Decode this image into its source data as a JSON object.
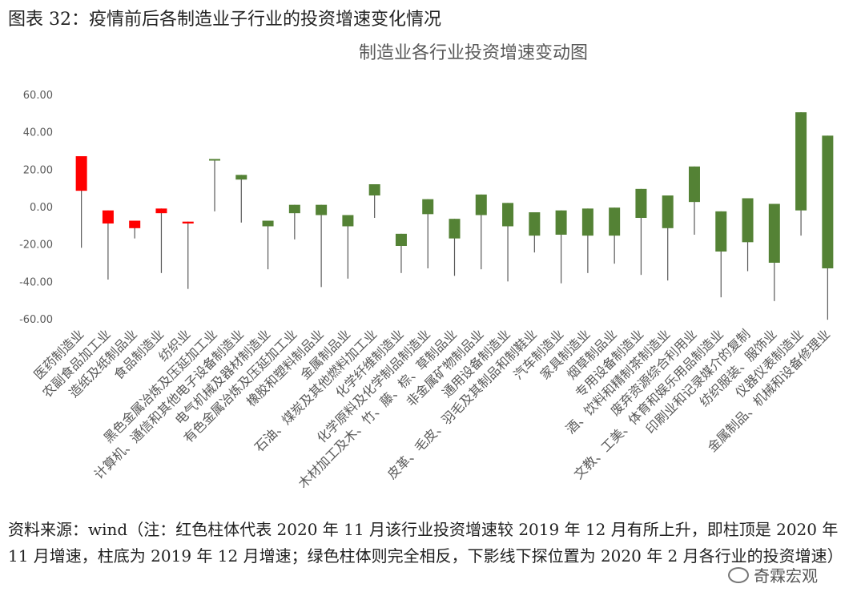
{
  "header": {
    "title": "图表 32：疫情前后各制造业子行业的投资增速变化情况"
  },
  "source": {
    "note": "资料来源：wind（注：红色柱体代表 2020 年 11 月该行业投资增速较 2019 年 12 月有所上升，即柱顶是 2020 年 11 月增速，柱底为 2019 年 12 月增速；绿色柱体则完全相反，下影线下探位置为 2020 年 2 月各行业的投资增速）"
  },
  "watermark": {
    "text": "奇霖宏观"
  },
  "colors": {
    "up": "#ff0000",
    "down": "#548235",
    "wick": "#595959",
    "axis_text": "#595959"
  },
  "chart_data": {
    "type": "candlestick",
    "title": "制造业各行业投资增速变动图",
    "ylim": [
      -60,
      60
    ],
    "yticks": [
      "60.00",
      "40.00",
      "20.00",
      "0.00",
      "-20.00",
      "-40.00",
      "-60.00"
    ],
    "ytick_values": [
      60,
      40,
      20,
      0,
      -20,
      -40,
      -60
    ],
    "grid": false,
    "legend": "none",
    "categories": [
      "医药制造业",
      "农副食品加工业",
      "造纸及纸制品业",
      "食品制造业",
      "纺织业",
      "黑色金属冶炼及压延加工业",
      "计算机、通信和其他电子设备制造业",
      "电气机械及器材制造业",
      "有色金属冶炼及压延加工业",
      "橡胶和塑料制品业",
      "金属制品业",
      "石油、煤炭及其他燃料加工业",
      "化学纤维制造业",
      "化学原料及化学制品制造业",
      "木材加工及木、竹、藤、棕、草制品业",
      "非金属矿物制品业",
      "通用设备制造业",
      "皮革、毛皮、羽毛及其制品和制鞋业",
      "汽车制造业",
      "家具制造业",
      "烟草制品业",
      "专用设备制造业",
      "酒、饮料和精制茶制造业",
      "废弃资源综合利用业",
      "文教、工美、体育和娱乐用品制造业",
      "印刷业和记录媒介的复制",
      "纺织服装、服饰业",
      "仪器仪表制造业",
      "金属制品、机械和设备修理业"
    ],
    "series": [
      {
        "open": 8.5,
        "close": 27.0,
        "high": 27.0,
        "low": -22.0
      },
      {
        "open": -9.0,
        "close": -2.0,
        "high": -2.0,
        "low": -39.0
      },
      {
        "open": -11.5,
        "close": -7.5,
        "high": -7.5,
        "low": -17.0
      },
      {
        "open": -3.5,
        "close": -1.0,
        "high": -1.0,
        "low": -35.5
      },
      {
        "open": -9.0,
        "close": -8.0,
        "high": -8.0,
        "low": -44.0
      },
      {
        "open": 25.5,
        "close": 25.0,
        "high": 25.5,
        "low": -2.5
      },
      {
        "open": 17.0,
        "close": 14.5,
        "high": 17.0,
        "low": -8.5
      },
      {
        "open": -7.5,
        "close": -10.5,
        "high": -7.5,
        "low": -33.5
      },
      {
        "open": 1.0,
        "close": -3.5,
        "high": 1.0,
        "low": -17.5
      },
      {
        "open": 1.0,
        "close": -4.5,
        "high": 1.0,
        "low": -43.0
      },
      {
        "open": -4.5,
        "close": -10.5,
        "high": -4.5,
        "low": -38.5
      },
      {
        "open": 12.0,
        "close": 6.0,
        "high": 12.0,
        "low": -6.0
      },
      {
        "open": -14.5,
        "close": -21.0,
        "high": -14.5,
        "low": -35.5
      },
      {
        "open": 4.0,
        "close": -4.0,
        "high": 4.0,
        "low": -33.0
      },
      {
        "open": -6.5,
        "close": -17.0,
        "high": -6.5,
        "low": -37.0
      },
      {
        "open": 6.5,
        "close": -4.5,
        "high": 6.5,
        "low": -33.5
      },
      {
        "open": 2.0,
        "close": -10.5,
        "high": 2.0,
        "low": -40.0
      },
      {
        "open": -3.0,
        "close": -15.5,
        "high": -3.0,
        "low": -24.5
      },
      {
        "open": -2.0,
        "close": -15.0,
        "high": -2.0,
        "low": -41.0
      },
      {
        "open": -1.0,
        "close": -15.5,
        "high": -1.0,
        "low": -35.5
      },
      {
        "open": -0.5,
        "close": -15.5,
        "high": -0.5,
        "low": -30.5
      },
      {
        "open": 9.5,
        "close": -6.0,
        "high": 9.5,
        "low": -36.5
      },
      {
        "open": 6.0,
        "close": -11.5,
        "high": 6.0,
        "low": -39.5
      },
      {
        "open": 21.5,
        "close": 2.5,
        "high": 21.5,
        "low": -15.0
      },
      {
        "open": -2.5,
        "close": -24.0,
        "high": -2.5,
        "low": -48.5
      },
      {
        "open": 4.5,
        "close": -19.0,
        "high": 4.5,
        "low": -34.5
      },
      {
        "open": 1.5,
        "close": -30.0,
        "high": 1.5,
        "low": -50.5
      },
      {
        "open": 50.5,
        "close": -2.0,
        "high": 50.5,
        "low": -15.5
      },
      {
        "open": 38.0,
        "close": -33.0,
        "high": 38.0,
        "low": -60.5
      }
    ]
  }
}
